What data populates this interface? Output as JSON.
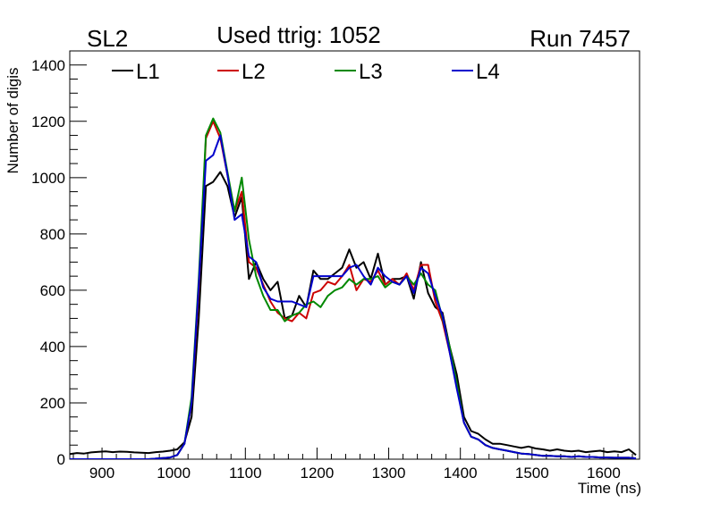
{
  "chart_data": {
    "type": "line",
    "title": "Used ttrig: 1052",
    "top_left_label": "SL2",
    "top_right_label": "Run 7457",
    "xlabel": "Time (ns)",
    "ylabel": "Number of digis",
    "xlim": [
      855,
      1650
    ],
    "ylim": [
      0,
      1450
    ],
    "x_ticks": [
      900,
      1000,
      1100,
      1200,
      1300,
      1400,
      1500,
      1600
    ],
    "x_tick_labels": [
      "900",
      "1000",
      "1100",
      "1200",
      "1300",
      "1400",
      "1500",
      "1600"
    ],
    "y_ticks": [
      0,
      200,
      400,
      600,
      800,
      1000,
      1200,
      1400
    ],
    "y_tick_labels": [
      "0",
      "200",
      "400",
      "600",
      "800",
      "1000",
      "1200",
      "1400"
    ],
    "legend_placement": "top-left, horizontal",
    "x": [
      855,
      865,
      875,
      885,
      895,
      905,
      915,
      925,
      935,
      945,
      955,
      965,
      975,
      985,
      995,
      1005,
      1015,
      1025,
      1035,
      1045,
      1055,
      1065,
      1075,
      1085,
      1095,
      1105,
      1115,
      1125,
      1135,
      1145,
      1155,
      1165,
      1175,
      1185,
      1195,
      1205,
      1215,
      1225,
      1235,
      1245,
      1255,
      1265,
      1275,
      1285,
      1295,
      1305,
      1315,
      1325,
      1335,
      1345,
      1355,
      1365,
      1375,
      1385,
      1395,
      1405,
      1415,
      1425,
      1435,
      1445,
      1455,
      1465,
      1475,
      1485,
      1495,
      1505,
      1515,
      1525,
      1535,
      1545,
      1555,
      1565,
      1575,
      1585,
      1595,
      1605,
      1615,
      1625,
      1635,
      1645
    ],
    "series": [
      {
        "name": "L1",
        "color": "#000000",
        "values": [
          18,
          22,
          20,
          24,
          26,
          28,
          25,
          27,
          26,
          24,
          23,
          22,
          25,
          27,
          30,
          35,
          60,
          150,
          500,
          970,
          985,
          1020,
          970,
          860,
          930,
          640,
          700,
          640,
          600,
          630,
          500,
          510,
          580,
          540,
          670,
          640,
          640,
          660,
          680,
          745,
          680,
          700,
          640,
          730,
          620,
          640,
          640,
          650,
          570,
          700,
          590,
          540,
          520,
          400,
          300,
          150,
          100,
          90,
          70,
          55,
          55,
          50,
          45,
          40,
          45,
          38,
          35,
          30,
          35,
          30,
          28,
          30,
          25,
          28,
          30,
          25,
          28,
          25,
          35,
          15
        ]
      },
      {
        "name": "L2",
        "color": "#cc0000",
        "values": [
          0,
          0,
          0,
          0,
          0,
          0,
          0,
          0,
          0,
          0,
          0,
          0,
          2,
          4,
          6,
          15,
          55,
          200,
          600,
          1140,
          1200,
          1140,
          1010,
          880,
          950,
          700,
          680,
          620,
          560,
          520,
          500,
          490,
          520,
          500,
          590,
          600,
          630,
          620,
          650,
          690,
          600,
          640,
          630,
          670,
          620,
          640,
          620,
          660,
          600,
          690,
          690,
          560,
          490,
          380,
          260,
          130,
          80,
          70,
          50,
          40,
          35,
          30,
          25,
          20,
          18,
          15,
          12,
          12,
          10,
          10,
          8,
          10,
          8,
          8,
          6,
          6,
          5,
          5,
          5,
          3
        ]
      },
      {
        "name": "L3",
        "color": "#008800",
        "values": [
          0,
          0,
          0,
          0,
          0,
          0,
          0,
          0,
          0,
          0,
          0,
          0,
          2,
          4,
          6,
          15,
          55,
          220,
          640,
          1150,
          1210,
          1160,
          1020,
          880,
          1000,
          780,
          650,
          580,
          530,
          530,
          490,
          510,
          520,
          550,
          560,
          540,
          580,
          600,
          610,
          640,
          620,
          640,
          640,
          650,
          610,
          630,
          620,
          650,
          620,
          660,
          620,
          600,
          500,
          400,
          270,
          130,
          80,
          70,
          50,
          40,
          35,
          30,
          25,
          20,
          18,
          15,
          12,
          12,
          10,
          10,
          8,
          10,
          8,
          8,
          6,
          6,
          5,
          5,
          5,
          3
        ]
      },
      {
        "name": "L4",
        "color": "#0000cc",
        "values": [
          0,
          0,
          0,
          0,
          0,
          0,
          0,
          0,
          0,
          0,
          0,
          0,
          2,
          4,
          6,
          15,
          55,
          200,
          620,
          1060,
          1080,
          1150,
          1010,
          850,
          870,
          720,
          700,
          610,
          570,
          560,
          560,
          560,
          550,
          540,
          650,
          650,
          650,
          650,
          650,
          680,
          690,
          650,
          620,
          680,
          650,
          630,
          620,
          650,
          590,
          680,
          660,
          580,
          510,
          380,
          250,
          130,
          80,
          70,
          50,
          40,
          35,
          30,
          25,
          20,
          18,
          15,
          12,
          12,
          10,
          10,
          8,
          10,
          8,
          8,
          6,
          6,
          5,
          5,
          5,
          3
        ]
      }
    ]
  }
}
